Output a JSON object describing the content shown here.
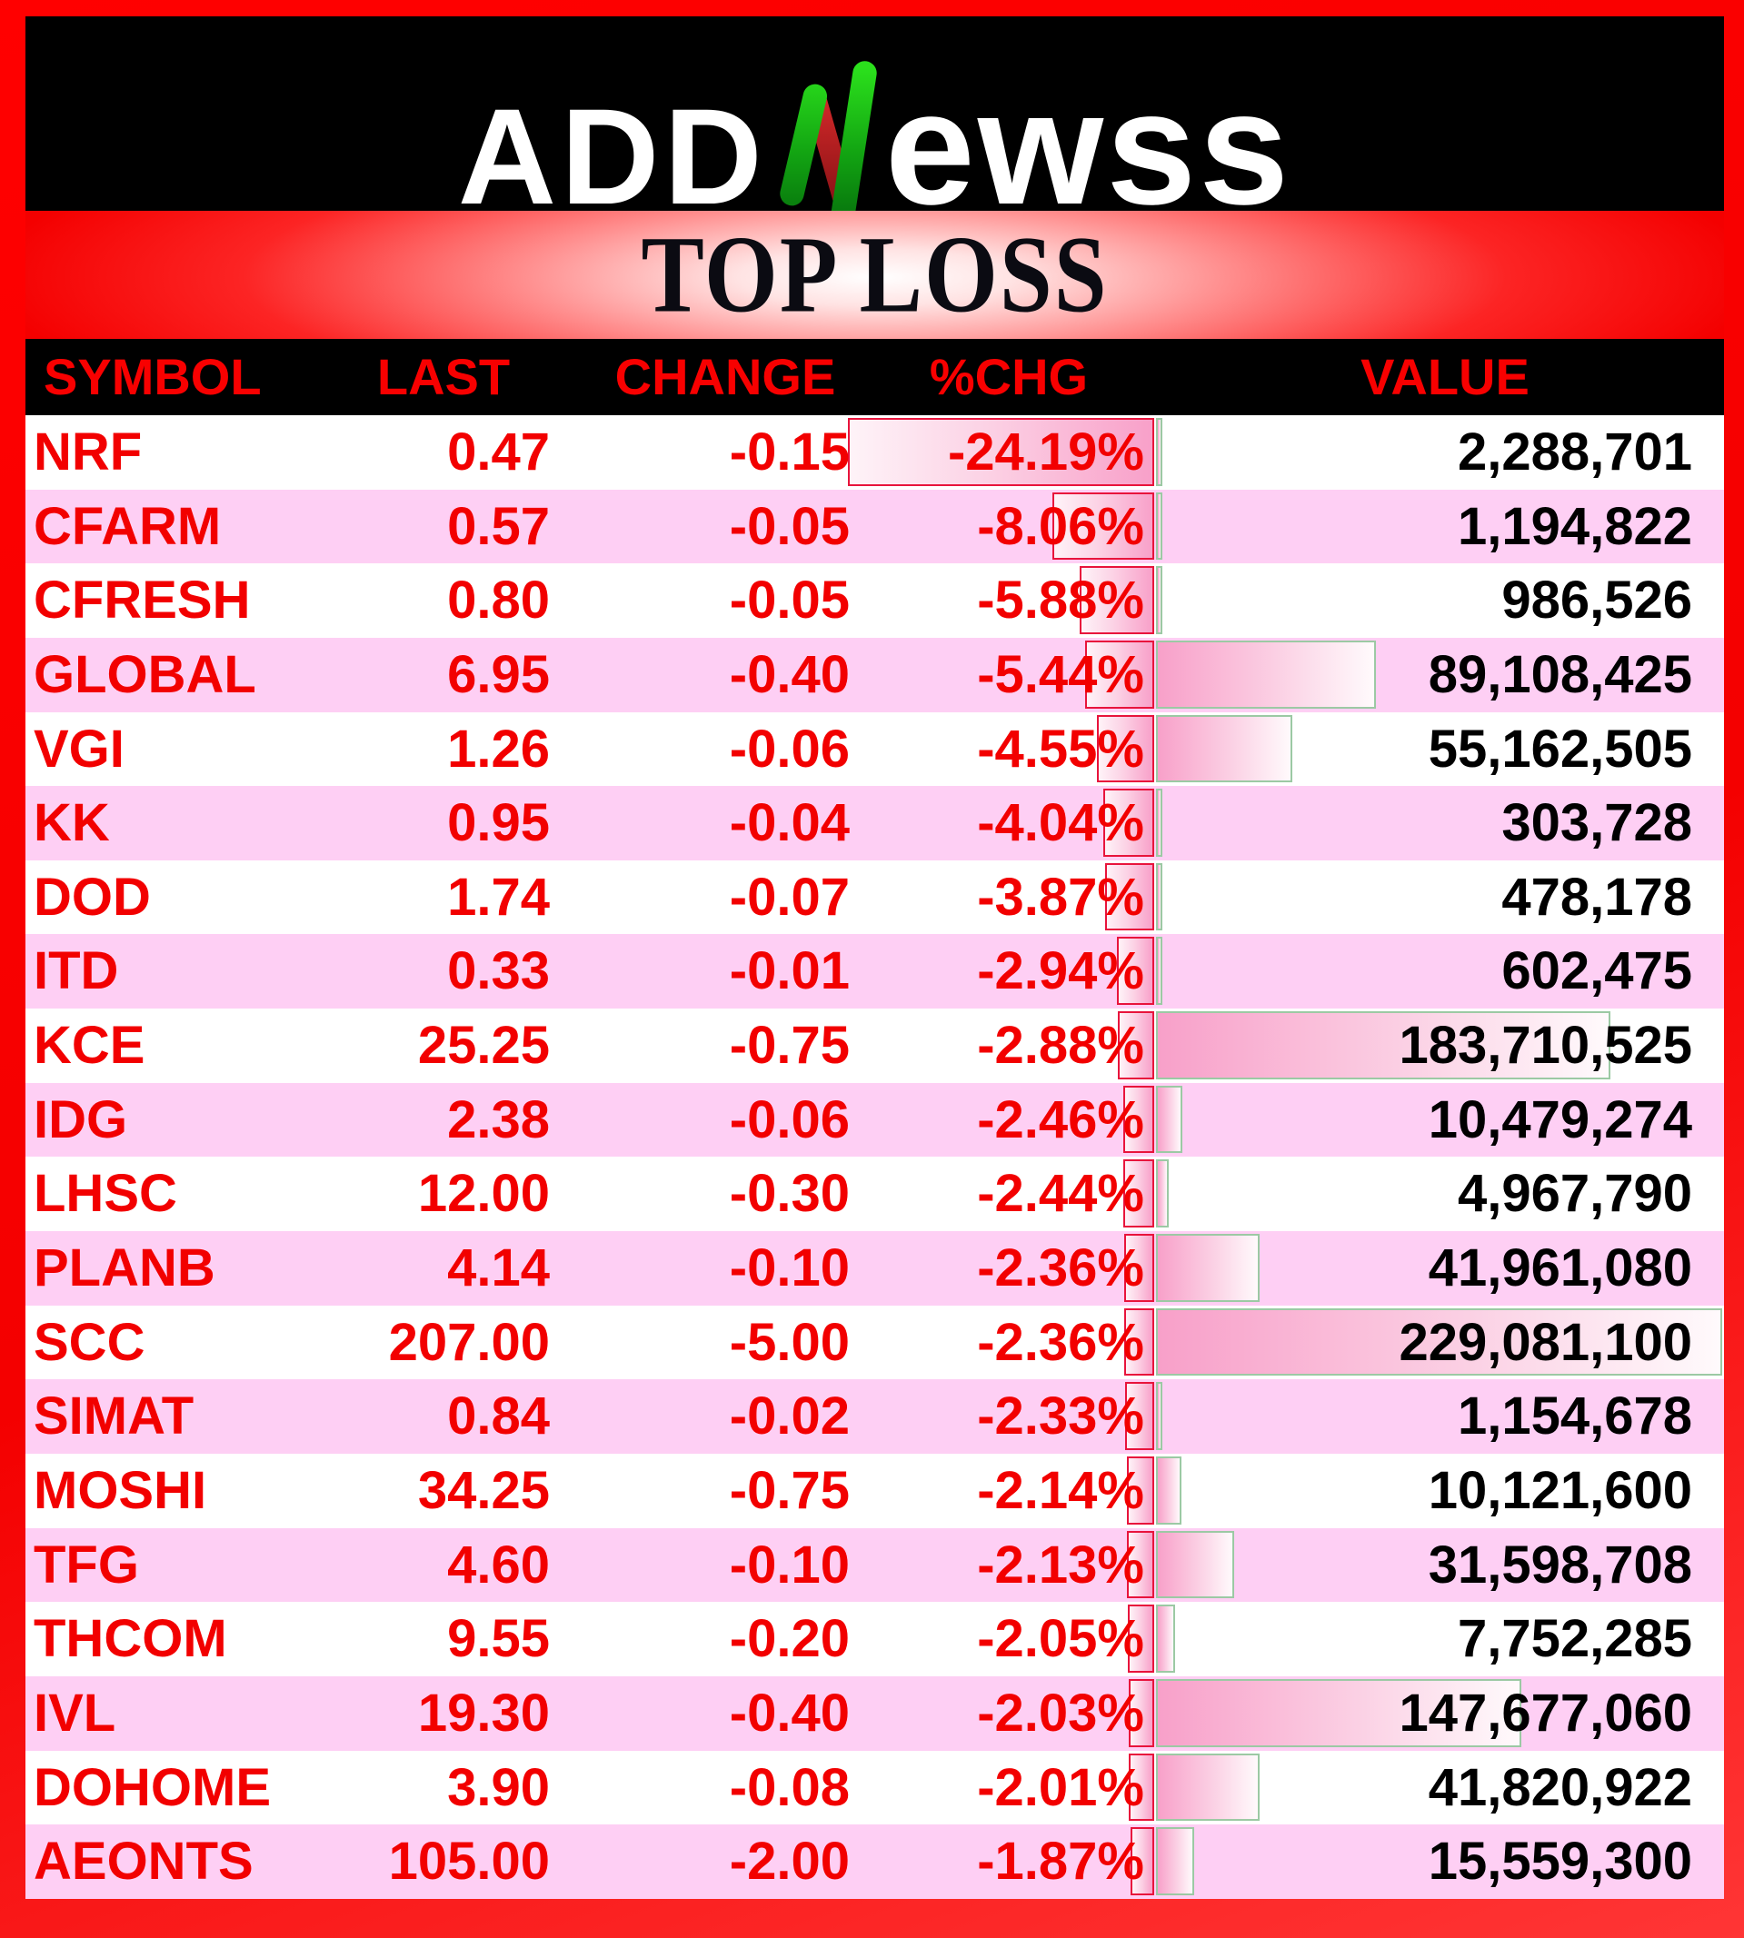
{
  "logo": {
    "prefix": "ADD",
    "n_letter": "N",
    "suffix": "ewss"
  },
  "title": "TOP LOSS",
  "chart_data": {
    "type": "table",
    "title": "TOP LOSS",
    "columns": [
      "SYMBOL",
      "LAST",
      "CHANGE",
      "%CHG",
      "VALUE"
    ],
    "rows": [
      {
        "symbol": "NRF",
        "last": "0.47",
        "change": "-0.15",
        "pct_chg": "-24.19%",
        "value": "2,288,701"
      },
      {
        "symbol": "CFARM",
        "last": "0.57",
        "change": "-0.05",
        "pct_chg": "-8.06%",
        "value": "1,194,822"
      },
      {
        "symbol": "CFRESH",
        "last": "0.80",
        "change": "-0.05",
        "pct_chg": "-5.88%",
        "value": "986,526"
      },
      {
        "symbol": "GLOBAL",
        "last": "6.95",
        "change": "-0.40",
        "pct_chg": "-5.44%",
        "value": "89,108,425"
      },
      {
        "symbol": "VGI",
        "last": "1.26",
        "change": "-0.06",
        "pct_chg": "-4.55%",
        "value": "55,162,505"
      },
      {
        "symbol": "KK",
        "last": "0.95",
        "change": "-0.04",
        "pct_chg": "-4.04%",
        "value": "303,728"
      },
      {
        "symbol": "DOD",
        "last": "1.74",
        "change": "-0.07",
        "pct_chg": "-3.87%",
        "value": "478,178"
      },
      {
        "symbol": "ITD",
        "last": "0.33",
        "change": "-0.01",
        "pct_chg": "-2.94%",
        "value": "602,475"
      },
      {
        "symbol": "KCE",
        "last": "25.25",
        "change": "-0.75",
        "pct_chg": "-2.88%",
        "value": "183,710,525"
      },
      {
        "symbol": "IDG",
        "last": "2.38",
        "change": "-0.06",
        "pct_chg": "-2.46%",
        "value": "10,479,274"
      },
      {
        "symbol": "LHSC",
        "last": "12.00",
        "change": "-0.30",
        "pct_chg": "-2.44%",
        "value": "4,967,790"
      },
      {
        "symbol": "PLANB",
        "last": "4.14",
        "change": "-0.10",
        "pct_chg": "-2.36%",
        "value": "41,961,080"
      },
      {
        "symbol": "SCC",
        "last": "207.00",
        "change": "-5.00",
        "pct_chg": "-2.36%",
        "value": "229,081,100"
      },
      {
        "symbol": "SIMAT",
        "last": "0.84",
        "change": "-0.02",
        "pct_chg": "-2.33%",
        "value": "1,154,678"
      },
      {
        "symbol": "MOSHI",
        "last": "34.25",
        "change": "-0.75",
        "pct_chg": "-2.14%",
        "value": "10,121,600"
      },
      {
        "symbol": "TFG",
        "last": "4.60",
        "change": "-0.10",
        "pct_chg": "-2.13%",
        "value": "31,598,708"
      },
      {
        "symbol": "THCOM",
        "last": "9.55",
        "change": "-0.20",
        "pct_chg": "-2.05%",
        "value": "7,752,285"
      },
      {
        "symbol": "IVL",
        "last": "19.30",
        "change": "-0.40",
        "pct_chg": "-2.03%",
        "value": "147,677,060"
      },
      {
        "symbol": "DOHOME",
        "last": "3.90",
        "change": "-0.08",
        "pct_chg": "-2.01%",
        "value": "41,820,922"
      },
      {
        "symbol": "AEONTS",
        "last": "105.00",
        "change": "-2.00",
        "pct_chg": "-1.87%",
        "value": "15,559,300"
      }
    ],
    "bars": {
      "pct_chg_bar": {
        "direction": "right-anchored",
        "axis_max_abs_pct": 24.19
      },
      "value_bar": {
        "direction": "left-anchored",
        "axis_max_value": 229081100
      }
    },
    "legend_position": "none",
    "grid": false
  },
  "colors": {
    "frame_red": "#F40000",
    "logo_band_bg": "#000000",
    "logo_text": "#FFFFFF",
    "logo_n_green": "#1CBE14",
    "logo_n_red": "#B01E22",
    "banner_red": "#F40000",
    "banner_glow": "#FFFFFF",
    "title_text": "#0B0B12",
    "header_bg": "#000000",
    "header_text": "#F80000",
    "row_white": "#FFFFFF",
    "row_pink": "#FECFF4",
    "data_text_red": "#F20000",
    "value_text_black": "#000000",
    "pct_bar_border": "#E8143C",
    "pct_bar_fill": "#F8A0C9",
    "value_bar_border": "#9CC9A4",
    "value_bar_fill": "#F8A0C9"
  }
}
